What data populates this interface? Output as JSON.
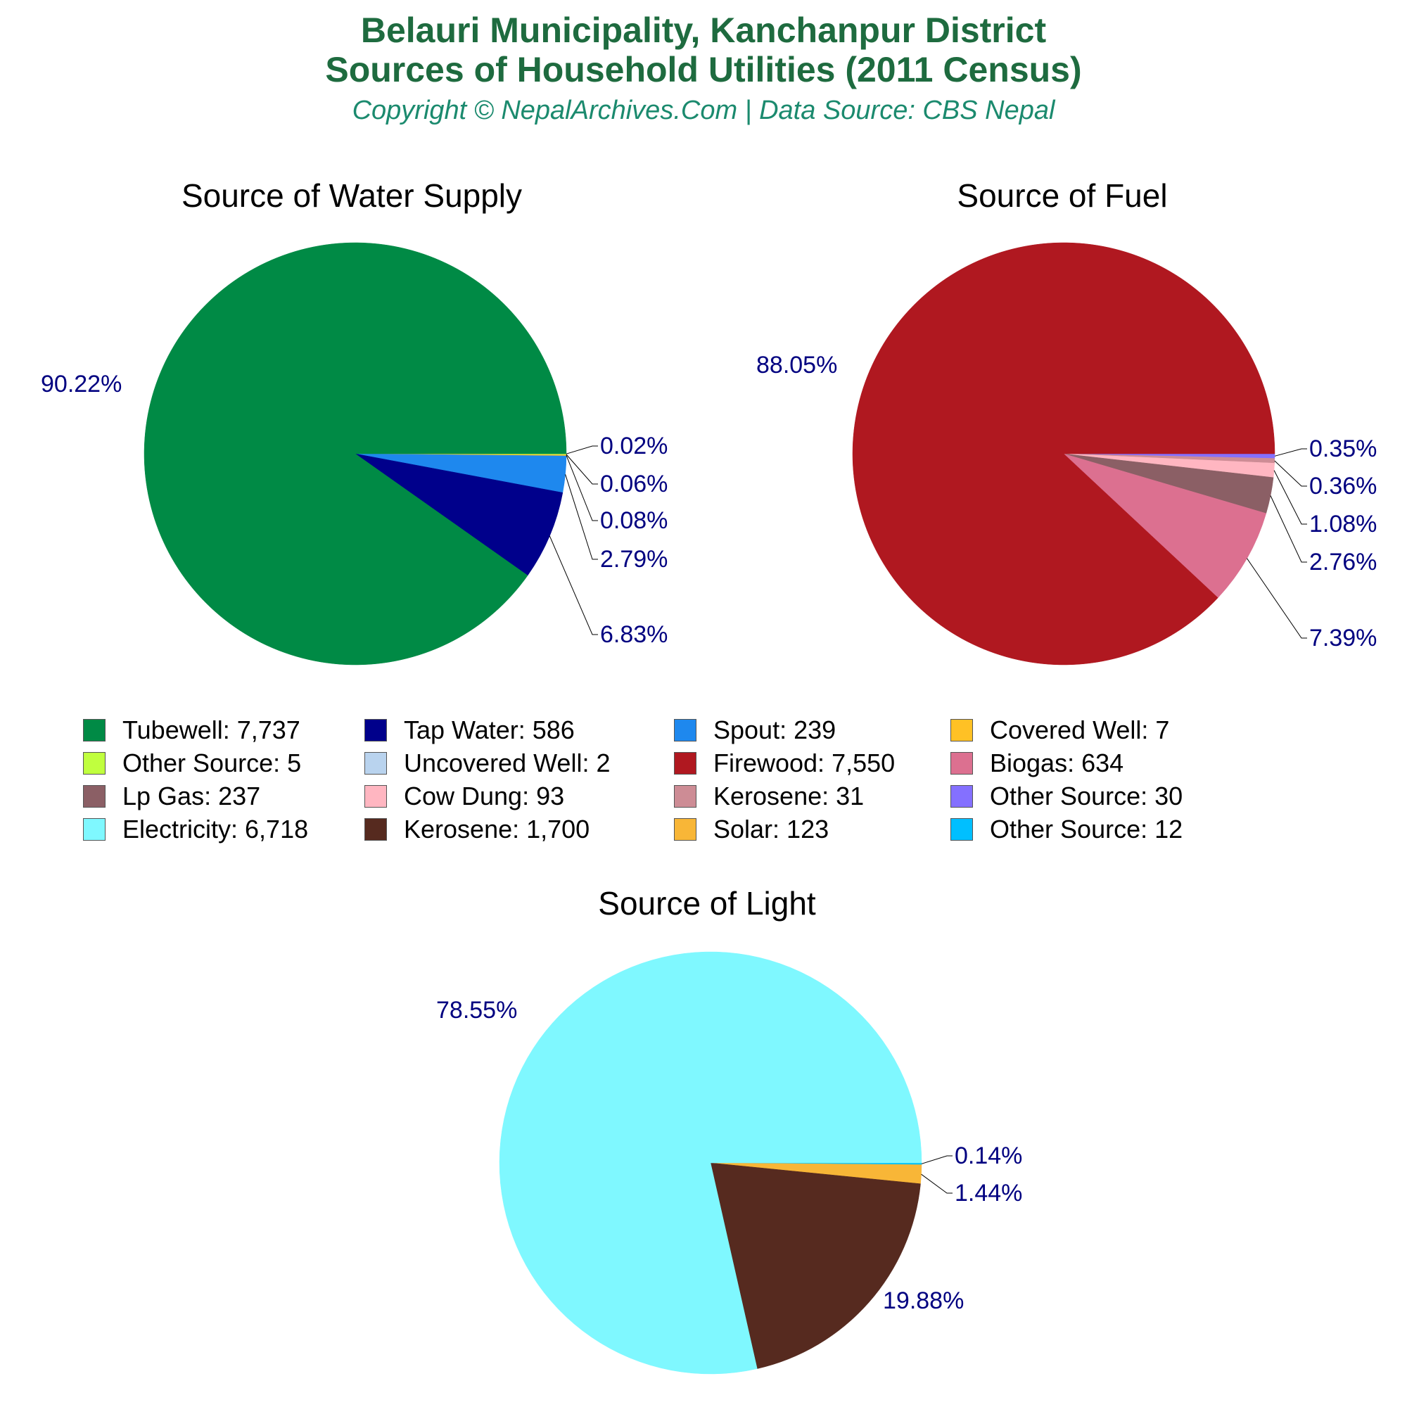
{
  "header": {
    "title_line1": "Belauri Municipality, Kanchanpur District",
    "title_line2": "Sources of Household Utilities (2011 Census)",
    "subtitle": "Copyright © NepalArchives.Com | Data Source: CBS Nepal"
  },
  "chart_data": [
    {
      "type": "pie",
      "title": "Source of Water Supply",
      "slices": [
        {
          "label": "Tubewell",
          "value": 7737,
          "percent": "90.22%",
          "color": "#008a45"
        },
        {
          "label": "Tap Water",
          "value": 586,
          "percent": "6.83%",
          "color": "#00008b"
        },
        {
          "label": "Spout",
          "value": 239,
          "percent": "2.79%",
          "color": "#1e88ee"
        },
        {
          "label": "Covered Well",
          "value": 7,
          "percent": "0.08%",
          "color": "#ffc125"
        },
        {
          "label": "Other Source",
          "value": 5,
          "percent": "0.06%",
          "color": "#c0ff3e"
        },
        {
          "label": "Uncovered Well",
          "value": 2,
          "percent": "0.02%",
          "color": "#b9d3ee"
        }
      ]
    },
    {
      "type": "pie",
      "title": "Source of Fuel",
      "slices": [
        {
          "label": "Firewood",
          "value": 7550,
          "percent": "88.05%",
          "color": "#b01820"
        },
        {
          "label": "Biogas",
          "value": 634,
          "percent": "7.39%",
          "color": "#dc7090"
        },
        {
          "label": "Lp Gas",
          "value": 237,
          "percent": "2.76%",
          "color": "#8b5f65"
        },
        {
          "label": "Cow Dung",
          "value": 93,
          "percent": "1.08%",
          "color": "#ffb6c1"
        },
        {
          "label": "Kerosene",
          "value": 31,
          "percent": "0.36%",
          "color": "#cd8c95"
        },
        {
          "label": "Other Source",
          "value": 30,
          "percent": "0.35%",
          "color": "#8470ff"
        }
      ]
    },
    {
      "type": "pie",
      "title": "Source of Light",
      "slices": [
        {
          "label": "Electricity",
          "value": 6718,
          "percent": "78.55%",
          "color": "#7ff8ff"
        },
        {
          "label": "Kerosene",
          "value": 1700,
          "percent": "19.88%",
          "color": "#562a1f"
        },
        {
          "label": "Solar",
          "value": 123,
          "percent": "1.44%",
          "color": "#f8b637"
        },
        {
          "label": "Other Source",
          "value": 12,
          "percent": "0.14%",
          "color": "#00bfff"
        }
      ]
    }
  ],
  "legend": {
    "items": [
      {
        "text": "Tubewell: 7,737",
        "color": "#008a45"
      },
      {
        "text": "Tap Water: 586",
        "color": "#00008b"
      },
      {
        "text": "Spout: 239",
        "color": "#1e88ee"
      },
      {
        "text": "Covered Well: 7",
        "color": "#ffc125"
      },
      {
        "text": "Other Source: 5",
        "color": "#c0ff3e"
      },
      {
        "text": "Uncovered Well: 2",
        "color": "#b9d3ee"
      },
      {
        "text": "Firewood: 7,550",
        "color": "#b01820"
      },
      {
        "text": "Biogas: 634",
        "color": "#dc7090"
      },
      {
        "text": "Lp Gas: 237",
        "color": "#8b5f65"
      },
      {
        "text": "Cow Dung: 93",
        "color": "#ffb6c1"
      },
      {
        "text": "Kerosene: 31",
        "color": "#cd8c95"
      },
      {
        "text": "Other Source: 30",
        "color": "#8470ff"
      },
      {
        "text": "Electricity: 6,718",
        "color": "#7ff8ff"
      },
      {
        "text": "Kerosene: 1,700",
        "color": "#562a1f"
      },
      {
        "text": "Solar: 123",
        "color": "#f8b637"
      },
      {
        "text": "Other Source: 12",
        "color": "#00bfff"
      }
    ]
  },
  "label_color": "#000080"
}
